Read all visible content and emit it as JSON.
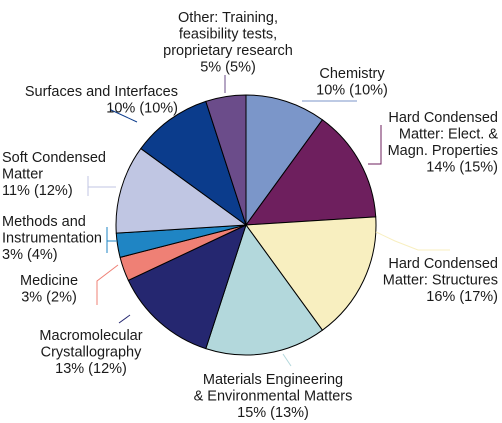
{
  "chart_data": {
    "type": "pie",
    "title": "",
    "value_format": "share (previous share)",
    "slices": [
      {
        "label_lines": [
          "Chemistry"
        ],
        "value": 10,
        "previous": 10,
        "value_text": "10% (10%)",
        "color": "#7b96c9"
      },
      {
        "label_lines": [
          "Hard Condensed",
          "Matter: Elect. &",
          "Magn. Properties"
        ],
        "value": 14,
        "previous": 15,
        "value_text": "14% (15%)",
        "color": "#6e1f5e"
      },
      {
        "label_lines": [
          "Hard Condensed",
          "Matter: Structures"
        ],
        "value": 16,
        "previous": 17,
        "value_text": "16% (17%)",
        "color": "#f8efc0"
      },
      {
        "label_lines": [
          "Materials Engineering",
          "& Environmental Matters"
        ],
        "value": 15,
        "previous": 13,
        "value_text": "15% (13%)",
        "color": "#b3d8dc"
      },
      {
        "label_lines": [
          "Macromolecular",
          "Crystallography"
        ],
        "value": 13,
        "previous": 12,
        "value_text": "13% (12%)",
        "color": "#252770"
      },
      {
        "label_lines": [
          "Medicine"
        ],
        "value": 3,
        "previous": 2,
        "value_text": "3% (2%)",
        "color": "#ef8075"
      },
      {
        "label_lines": [
          "Methods and",
          "Instrumentation"
        ],
        "value": 3,
        "previous": 4,
        "value_text": "3% (4%)",
        "color": "#1f85c4"
      },
      {
        "label_lines": [
          "Soft Condensed",
          "Matter"
        ],
        "value": 11,
        "previous": 12,
        "value_text": "11% (12%)",
        "color": "#c0c6e3"
      },
      {
        "label_lines": [
          "Surfaces and Interfaces"
        ],
        "value": 10,
        "previous": 10,
        "value_text": "10% (10%)",
        "color": "#0b3c8c"
      },
      {
        "label_lines": [
          "Other: Training,",
          "feasibility tests,",
          "proprietary research"
        ],
        "value": 5,
        "previous": 5,
        "value_text": "5% (5%)",
        "color": "#6b4c8a"
      }
    ]
  }
}
